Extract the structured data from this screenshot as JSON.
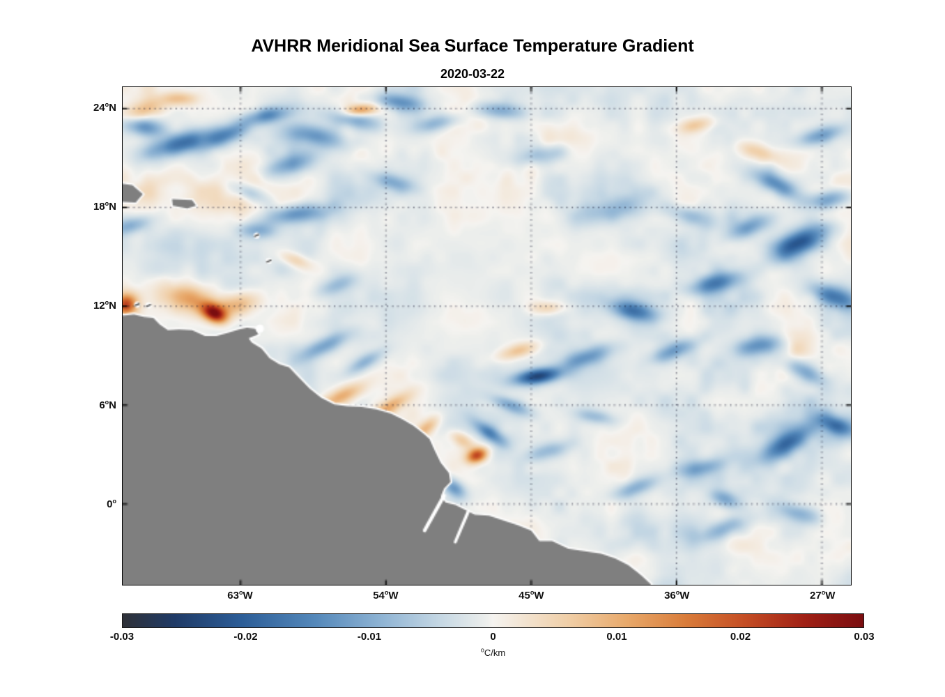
{
  "figure": {
    "title": "AVHRR Meridional Sea Surface Temperature Gradient",
    "subtitle": "2020-03-22"
  },
  "chart_data": {
    "type": "heatmap",
    "title": "AVHRR Meridional Sea Surface Temperature Gradient",
    "date": "2020-03-22",
    "variable": "meridional sea surface temperature gradient",
    "units": "°C/km",
    "lon_range": [
      -70.3,
      -25.2
    ],
    "lat_range": [
      -4.9,
      25.3
    ],
    "value_range": [
      -0.03,
      0.03
    ],
    "grid_on": true,
    "x_ticks": [
      {
        "lon": -63,
        "label": "63°W"
      },
      {
        "lon": -54,
        "label": "54°W"
      },
      {
        "lon": -45,
        "label": "45°W"
      },
      {
        "lon": -36,
        "label": "36°W"
      },
      {
        "lon": -27,
        "label": "27°W"
      }
    ],
    "y_ticks": [
      {
        "lat": 24,
        "label": "24°N"
      },
      {
        "lat": 18,
        "label": "18°N"
      },
      {
        "lat": 12,
        "label": "12°N"
      },
      {
        "lat": 6,
        "label": "6°N"
      },
      {
        "lat": 0,
        "label": "0°"
      }
    ],
    "colorbar": {
      "units_label": "°C/km",
      "ticks": [
        {
          "v": -0.03,
          "label": "-0.03"
        },
        {
          "v": -0.02,
          "label": "-0.02"
        },
        {
          "v": -0.01,
          "label": "-0.01"
        },
        {
          "v": 0,
          "label": "0"
        },
        {
          "v": 0.01,
          "label": "0.01"
        },
        {
          "v": 0.02,
          "label": "0.02"
        },
        {
          "v": 0.03,
          "label": "0.03"
        }
      ],
      "colormap": [
        {
          "t": 0.0,
          "c": "#2f3138"
        },
        {
          "t": 0.07,
          "c": "#1f3a66"
        },
        {
          "t": 0.16,
          "c": "#2c5d97"
        },
        {
          "t": 0.26,
          "c": "#5488ba"
        },
        {
          "t": 0.35,
          "c": "#8fb4d4"
        },
        {
          "t": 0.43,
          "c": "#c6d8e4"
        },
        {
          "t": 0.49,
          "c": "#eceeec"
        },
        {
          "t": 0.5,
          "c": "#f5f3f0"
        },
        {
          "t": 0.53,
          "c": "#f3e8da"
        },
        {
          "t": 0.6,
          "c": "#f0cfa8"
        },
        {
          "t": 0.68,
          "c": "#e8a96b"
        },
        {
          "t": 0.76,
          "c": "#d97c3a"
        },
        {
          "t": 0.84,
          "c": "#c44d24"
        },
        {
          "t": 0.92,
          "c": "#a02015"
        },
        {
          "t": 1.0,
          "c": "#7a0d10"
        }
      ]
    },
    "land_color": "#7f7f7f",
    "coast_mask_color": "#ffffff",
    "ocean_features": {
      "format": "[lon, lat, amplitude_degC_per_km, sigma_major_deg, sigma_minor_deg, angle_deg]",
      "blobs": [
        [
          -64.6,
          11.55,
          0.026,
          0.55,
          0.35,
          -25
        ],
        [
          -65.9,
          12.4,
          0.013,
          1.3,
          0.6,
          -15
        ],
        [
          -63.2,
          12.1,
          0.009,
          0.9,
          0.45,
          10
        ],
        [
          -70.1,
          12.1,
          0.02,
          0.45,
          0.45,
          0
        ],
        [
          -56.8,
          6.5,
          0.011,
          1.1,
          0.35,
          25
        ],
        [
          -53.8,
          5.9,
          0.01,
          1.0,
          0.3,
          30
        ],
        [
          -51.5,
          4.6,
          0.009,
          0.7,
          0.3,
          40
        ],
        [
          -48.35,
          2.95,
          0.021,
          0.45,
          0.3,
          20
        ],
        [
          -49.3,
          3.9,
          0.008,
          0.6,
          0.3,
          -30
        ],
        [
          -55.6,
          23.9,
          0.014,
          0.7,
          0.25,
          5
        ],
        [
          -68.9,
          23.9,
          0.009,
          0.9,
          0.4,
          20
        ],
        [
          -66.8,
          24.6,
          0.008,
          0.8,
          0.3,
          0
        ],
        [
          -30.8,
          21.3,
          0.008,
          0.9,
          0.35,
          -20
        ],
        [
          -43.9,
          11.9,
          0.007,
          0.8,
          0.3,
          0
        ],
        [
          -59.6,
          14.8,
          0.007,
          0.7,
          0.3,
          -20
        ],
        [
          -34.8,
          23.0,
          0.007,
          0.8,
          0.3,
          10
        ],
        [
          -45.8,
          9.3,
          0.008,
          0.9,
          0.3,
          15
        ],
        [
          -66.6,
          21.9,
          -0.017,
          1.6,
          0.45,
          15
        ],
        [
          -69.0,
          22.9,
          -0.013,
          0.9,
          0.4,
          -10
        ],
        [
          -63.8,
          22.4,
          -0.012,
          1.1,
          0.4,
          25
        ],
        [
          -61.3,
          23.6,
          -0.013,
          1.1,
          0.35,
          10
        ],
        [
          -58.2,
          22.3,
          -0.012,
          1.4,
          0.45,
          -12
        ],
        [
          -56.0,
          23.3,
          -0.01,
          1.2,
          0.4,
          -10
        ],
        [
          -60.0,
          20.6,
          -0.009,
          1.2,
          0.4,
          15
        ],
        [
          -59.6,
          17.6,
          -0.012,
          1.4,
          0.4,
          8
        ],
        [
          -62.0,
          16.6,
          -0.009,
          0.8,
          0.35,
          0
        ],
        [
          -69.8,
          16.9,
          -0.009,
          0.9,
          0.35,
          15
        ],
        [
          -53.2,
          24.4,
          -0.012,
          1.0,
          0.35,
          -8
        ],
        [
          -50.8,
          23.1,
          -0.009,
          1.0,
          0.35,
          12
        ],
        [
          -47.0,
          23.9,
          -0.009,
          1.1,
          0.35,
          -5
        ],
        [
          -44.3,
          21.2,
          -0.007,
          1.2,
          0.4,
          10
        ],
        [
          -53.5,
          19.5,
          -0.008,
          1.1,
          0.35,
          -15
        ],
        [
          -57.0,
          13.3,
          -0.007,
          0.9,
          0.35,
          20
        ],
        [
          -57.8,
          9.6,
          -0.01,
          1.2,
          0.35,
          25
        ],
        [
          -55.3,
          8.6,
          -0.008,
          0.9,
          0.3,
          30
        ],
        [
          -44.6,
          7.75,
          -0.023,
          1.0,
          0.32,
          8
        ],
        [
          -46.3,
          6.0,
          -0.01,
          0.9,
          0.3,
          -20
        ],
        [
          -47.6,
          4.3,
          -0.013,
          0.8,
          0.3,
          -35
        ],
        [
          -49.8,
          1.0,
          -0.012,
          0.6,
          0.35,
          -40
        ],
        [
          -52.6,
          2.2,
          -0.009,
          0.8,
          0.35,
          -30
        ],
        [
          -41.6,
          8.9,
          -0.011,
          1.2,
          0.38,
          18
        ],
        [
          -38.6,
          11.7,
          -0.014,
          1.0,
          0.4,
          -12
        ],
        [
          -36.2,
          9.3,
          -0.01,
          1.0,
          0.35,
          22
        ],
        [
          -33.6,
          13.4,
          -0.013,
          1.2,
          0.4,
          15
        ],
        [
          -28.4,
          15.9,
          -0.019,
          1.3,
          0.5,
          28
        ],
        [
          -26.3,
          12.6,
          -0.016,
          1.0,
          0.45,
          -18
        ],
        [
          -29.8,
          19.4,
          -0.013,
          1.1,
          0.4,
          -25
        ],
        [
          -26.5,
          18.5,
          -0.012,
          1.0,
          0.4,
          10
        ],
        [
          -27.0,
          22.4,
          -0.01,
          1.0,
          0.35,
          15
        ],
        [
          -30.9,
          9.6,
          -0.012,
          1.0,
          0.4,
          10
        ],
        [
          -28.0,
          8.0,
          -0.011,
          1.0,
          0.4,
          -25
        ],
        [
          -29.3,
          3.6,
          -0.015,
          1.2,
          0.45,
          30
        ],
        [
          -26.2,
          4.8,
          -0.013,
          0.9,
          0.4,
          -20
        ],
        [
          -34.3,
          2.2,
          -0.009,
          1.0,
          0.35,
          12
        ],
        [
          -33.0,
          0.3,
          -0.01,
          0.7,
          0.35,
          -20
        ],
        [
          -38.5,
          1.0,
          -0.009,
          1.0,
          0.35,
          20
        ],
        [
          -33.0,
          -1.5,
          -0.01,
          1.2,
          0.4,
          20
        ],
        [
          -28.5,
          -0.5,
          -0.009,
          1.0,
          0.4,
          -15
        ],
        [
          -40.0,
          17.8,
          -0.007,
          1.5,
          0.5,
          10
        ],
        [
          -35.2,
          17.5,
          -0.008,
          1.1,
          0.4,
          -15
        ],
        [
          -31.5,
          16.8,
          -0.01,
          1.0,
          0.4,
          20
        ],
        [
          -44.0,
          3.2,
          -0.008,
          1.0,
          0.35,
          15
        ],
        [
          -41.0,
          5.3,
          -0.007,
          0.9,
          0.3,
          -10
        ],
        [
          -62.5,
          18.9,
          -0.008,
          0.9,
          0.35,
          -20
        ]
      ]
    },
    "texture": {
      "seed": 20200322,
      "amplitude": 0.0058,
      "bias": -0.0006,
      "sharpen": 1.25,
      "octaves": [
        [
          13,
          9,
          0.5
        ],
        [
          27,
          19,
          0.3
        ],
        [
          55,
          38,
          0.2
        ]
      ],
      "modulation": [
        [
          -51,
          13,
          6,
          5,
          -0.45
        ],
        [
          -29,
          12,
          5,
          8,
          0.4
        ],
        [
          -65,
          22,
          5,
          3,
          0.35
        ],
        [
          -44,
          22,
          8,
          4,
          0.15
        ]
      ]
    },
    "coastline": [
      [
        -72.5,
        -6.5
      ],
      [
        -72.5,
        11.55
      ],
      [
        -70.2,
        11.45
      ],
      [
        -69.6,
        11.5
      ],
      [
        -69.0,
        11.35
      ],
      [
        -68.4,
        11.3
      ],
      [
        -68.0,
        10.9
      ],
      [
        -67.5,
        10.55
      ],
      [
        -66.8,
        10.6
      ],
      [
        -66.0,
        10.55
      ],
      [
        -65.2,
        10.2
      ],
      [
        -64.5,
        10.2
      ],
      [
        -63.8,
        10.4
      ],
      [
        -63.1,
        10.6
      ],
      [
        -62.6,
        10.7
      ],
      [
        -62.1,
        10.65
      ],
      [
        -61.9,
        10.3
      ],
      [
        -62.5,
        10.05
      ],
      [
        -62.3,
        9.8
      ],
      [
        -61.7,
        9.45
      ],
      [
        -61.2,
        8.85
      ],
      [
        -60.6,
        8.5
      ],
      [
        -60.0,
        8.3
      ],
      [
        -59.4,
        7.7
      ],
      [
        -58.7,
        7.0
      ],
      [
        -58.0,
        6.45
      ],
      [
        -57.2,
        6.05
      ],
      [
        -56.4,
        5.95
      ],
      [
        -55.5,
        5.9
      ],
      [
        -54.6,
        5.75
      ],
      [
        -53.7,
        5.5
      ],
      [
        -53.0,
        5.15
      ],
      [
        -52.3,
        4.75
      ],
      [
        -51.7,
        4.3
      ],
      [
        -51.3,
        3.95
      ],
      [
        -51.0,
        3.3
      ],
      [
        -50.6,
        2.5
      ],
      [
        -50.1,
        1.9
      ],
      [
        -50.0,
        1.35
      ],
      [
        -50.4,
        0.95
      ],
      [
        -50.6,
        0.45
      ],
      [
        -50.3,
        0.1
      ],
      [
        -49.7,
        -0.05
      ],
      [
        -49.1,
        -0.35
      ],
      [
        -48.5,
        -0.65
      ],
      [
        -47.6,
        -0.7
      ],
      [
        -46.7,
        -1.0
      ],
      [
        -45.8,
        -1.3
      ],
      [
        -45.0,
        -1.6
      ],
      [
        -44.5,
        -2.25
      ],
      [
        -43.7,
        -2.25
      ],
      [
        -42.7,
        -2.7
      ],
      [
        -41.7,
        -2.85
      ],
      [
        -40.7,
        -3.0
      ],
      [
        -39.8,
        -3.3
      ],
      [
        -39.0,
        -3.7
      ],
      [
        -38.2,
        -4.3
      ],
      [
        -37.6,
        -4.85
      ],
      [
        -37.2,
        -6.5
      ]
    ],
    "islands": [
      {
        "name": "hispaniola",
        "points": [
          [
            -71.5,
            19.6
          ],
          [
            -69.7,
            19.35
          ],
          [
            -69.05,
            18.8
          ],
          [
            -69.5,
            18.3
          ],
          [
            -71.5,
            18.4
          ]
        ]
      },
      {
        "name": "puerto-rico",
        "points": [
          [
            -67.25,
            18.5
          ],
          [
            -66.0,
            18.45
          ],
          [
            -65.75,
            18.1
          ],
          [
            -66.3,
            17.95
          ],
          [
            -67.2,
            18.1
          ]
        ]
      }
    ],
    "river_channels": [
      {
        "pts": [
          [
            -50.4,
            0.5
          ],
          [
            -51.6,
            -1.6
          ]
        ],
        "w": 2.6
      },
      {
        "pts": [
          [
            -48.9,
            -0.45
          ],
          [
            -49.7,
            -2.3
          ]
        ],
        "w": 2.2
      }
    ],
    "small_islands": [
      [
        -62.0,
        16.3
      ],
      [
        -61.25,
        14.75
      ],
      [
        -69.4,
        12.1
      ],
      [
        -68.7,
        12.05
      ]
    ],
    "masked_islands": [
      [
        -61.8,
        10.65
      ]
    ]
  }
}
